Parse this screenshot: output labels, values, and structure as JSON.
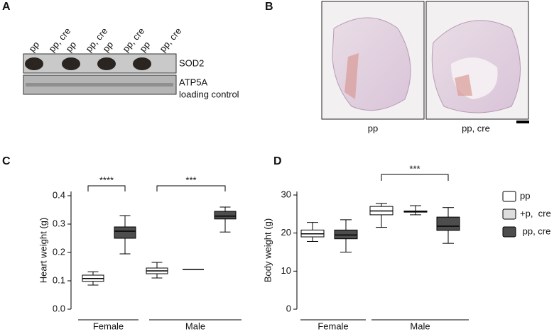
{
  "panel_a": {
    "letter": "A",
    "lanes": [
      "pp",
      "pp, cre",
      "pp",
      "pp, cre",
      "pp",
      "pp, cre",
      "pp",
      "pp, cre"
    ],
    "blots": [
      "SOD2",
      "ATP5A"
    ],
    "note": "loading control"
  },
  "panel_b": {
    "letter": "B",
    "captions": [
      "pp",
      "pp, cre"
    ]
  },
  "chart_data": [
    {
      "type": "box",
      "letter": "C",
      "y_label": "Heart weight (g)",
      "categories": [
        "Female",
        "Male"
      ],
      "ylim": [
        0,
        0.4
      ],
      "yticks": [
        {
          "value": 0,
          "label": "0.0"
        },
        0.1,
        0.2,
        0.3,
        0.4
      ],
      "series": [
        {
          "color": "#ffffff",
          "values": [
            {
              "min": 0.085,
              "q1": 0.098,
              "median": 0.108,
              "q3": 0.12,
              "max": 0.132
            },
            {
              "min": 0.11,
              "q1": 0.125,
              "median": 0.135,
              "q3": 0.145,
              "max": 0.165
            }
          ]
        },
        {
          "color": "#dddddd",
          "values": [
            null,
            {
              "min": 0.14,
              "q1": 0.14,
              "median": 0.14,
              "q3": 0.14,
              "max": 0.14
            }
          ]
        },
        {
          "color": "#4d4d4d",
          "values": [
            {
              "min": 0.195,
              "q1": 0.25,
              "median": 0.275,
              "q3": 0.29,
              "max": 0.33
            },
            {
              "min": 0.272,
              "q1": 0.318,
              "median": 0.328,
              "q3": 0.345,
              "max": 0.36
            }
          ]
        }
      ],
      "annotations": [
        "****",
        "***"
      ]
    },
    {
      "type": "box",
      "letter": "D",
      "y_label": "Body weight (g)",
      "categories": [
        "Female",
        "Male"
      ],
      "ylim": [
        0,
        30
      ],
      "yticks": [
        0,
        10,
        20,
        30
      ],
      "series": [
        {
          "name": "pp",
          "color": "#ffffff",
          "values": [
            {
              "min": 17.8,
              "q1": 19,
              "median": 19.8,
              "q3": 20.8,
              "max": 22.8
            },
            {
              "min": 21.5,
              "q1": 24.8,
              "median": 25.8,
              "q3": 27,
              "max": 27.8
            }
          ]
        },
        {
          "name": "+p,  cre",
          "color": "#dddddd",
          "values": [
            null,
            {
              "min": 24.8,
              "q1": 25.5,
              "median": 25.7,
              "q3": 25.8,
              "max": 27.2
            }
          ]
        },
        {
          "name": " pp, cre",
          "color": "#4d4d4d",
          "values": [
            {
              "min": 15,
              "q1": 18.5,
              "median": 19.5,
              "q3": 20.8,
              "max": 23.5
            },
            {
              "min": 17.3,
              "q1": 20.7,
              "median": 21.8,
              "q3": 24.2,
              "max": 26.7
            }
          ]
        }
      ],
      "annotations": [
        "***"
      ]
    }
  ]
}
